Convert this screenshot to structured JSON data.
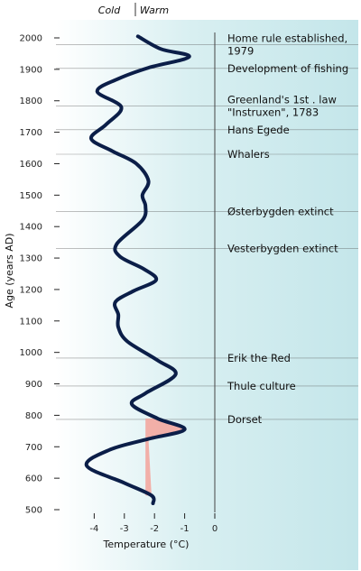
{
  "chart_data": {
    "type": "line",
    "header_labels": {
      "cold": "Cold",
      "warm": "Warm"
    },
    "xlabel": "Temperature (°C)",
    "ylabel": "Age (years AD)",
    "xlim": [
      -4.7,
      0
    ],
    "ylim": [
      470,
      2035
    ],
    "x_ticks": [
      -4,
      -3,
      -2,
      -1,
      0
    ],
    "y_ticks": [
      500,
      600,
      700,
      800,
      900,
      1000,
      1100,
      1200,
      1300,
      1400,
      1500,
      1600,
      1700,
      1800,
      1900,
      2000
    ],
    "colors": {
      "background": "#c4e6ea",
      "curve": "#0b1e48",
      "warm_fill": "#f3a7a0",
      "guide": "#555555"
    },
    "series": [
      {
        "points": [
          {
            "x": -2.05,
            "y": 520
          },
          {
            "x": -2.1,
            "y": 545
          },
          {
            "x": -3.0,
            "y": 585
          },
          {
            "x": -4.25,
            "y": 640
          },
          {
            "x": -3.5,
            "y": 690
          },
          {
            "x": -2.2,
            "y": 725
          },
          {
            "x": -1.0,
            "y": 755
          },
          {
            "x": -1.9,
            "y": 790
          },
          {
            "x": -2.75,
            "y": 835
          },
          {
            "x": -2.3,
            "y": 870
          },
          {
            "x": -1.3,
            "y": 930
          },
          {
            "x": -1.9,
            "y": 975
          },
          {
            "x": -2.9,
            "y": 1035
          },
          {
            "x": -3.2,
            "y": 1080
          },
          {
            "x": -3.2,
            "y": 1120
          },
          {
            "x": -3.3,
            "y": 1160
          },
          {
            "x": -2.7,
            "y": 1195
          },
          {
            "x": -1.95,
            "y": 1230
          },
          {
            "x": -2.35,
            "y": 1265
          },
          {
            "x": -3.15,
            "y": 1305
          },
          {
            "x": -3.25,
            "y": 1345
          },
          {
            "x": -2.4,
            "y": 1420
          },
          {
            "x": -2.3,
            "y": 1465
          },
          {
            "x": -2.4,
            "y": 1500
          },
          {
            "x": -2.2,
            "y": 1545
          },
          {
            "x": -2.6,
            "y": 1600
          },
          {
            "x": -3.4,
            "y": 1640
          },
          {
            "x": -4.1,
            "y": 1680
          },
          {
            "x": -3.6,
            "y": 1725
          },
          {
            "x": -3.1,
            "y": 1780
          },
          {
            "x": -3.9,
            "y": 1830
          },
          {
            "x": -3.2,
            "y": 1870
          },
          {
            "x": -2.2,
            "y": 1905
          },
          {
            "x": -0.85,
            "y": 1940
          },
          {
            "x": -1.8,
            "y": 1965
          },
          {
            "x": -2.55,
            "y": 2005
          }
        ]
      }
    ],
    "annotations": [
      {
        "text": "Home rule established,",
        "y": 1979
      },
      {
        "text": "1979",
        "y": 1979
      },
      {
        "text": "Development of fishing",
        "y": 1903
      },
      {
        "text": "Greenland's 1st . law",
        "y": 1783
      },
      {
        "text": "\"Instruxen\", 1783",
        "y": 1783
      },
      {
        "text": "Hans Egede",
        "y": 1708
      },
      {
        "text": "Whalers",
        "y": 1630
      },
      {
        "text": "Østerbygden extinct",
        "y": 1448
      },
      {
        "text": "Vesterbygden extinct",
        "y": 1330
      },
      {
        "text": "Erik the Red",
        "y": 982
      },
      {
        "text": "Thule culture",
        "y": 893
      },
      {
        "text": "Dorset",
        "y": 787
      }
    ]
  }
}
